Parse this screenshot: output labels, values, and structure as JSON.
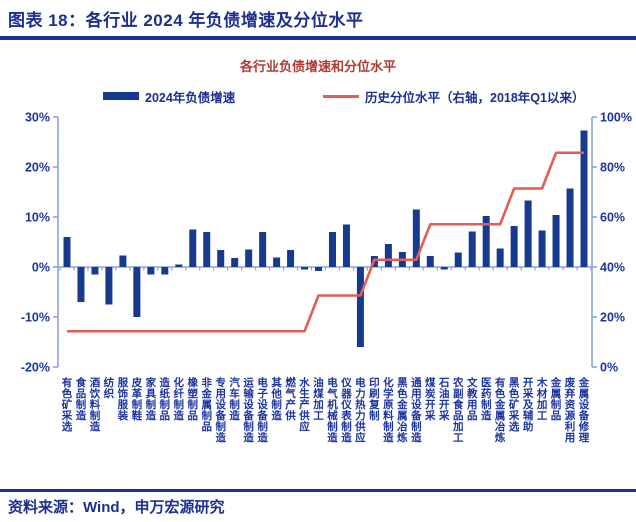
{
  "header": {
    "title": "图表 18：各行业 2024 年负债增速及分位水平"
  },
  "footer": {
    "source": "资料来源：Wind，申万宏源研究"
  },
  "colors": {
    "navy": "#1c2f92",
    "bar": "#17398f",
    "line": "#e25d55",
    "subtitle": "#b03a33",
    "axis_line": "#8aa5dc",
    "tick_label": "#1c34a0"
  },
  "chart_data": {
    "type": "bar",
    "title": "各行业负债增速和分位水平",
    "legend_position": "top",
    "grid": false,
    "categories": [
      "有色矿采选",
      "食品制造",
      "酒饮料制造",
      "纺织",
      "服饰服装",
      "皮革制鞋",
      "家具制造",
      "造纸制品",
      "化纤制造",
      "橡塑制品",
      "非金属制品",
      "专用设备制造",
      "汽车制造",
      "运输设备制造",
      "电子设备制造",
      "其他制造",
      "燃气产供",
      "水生产供应",
      "油煤加工",
      "电气机械制造",
      "仪器仪表制造",
      "电力热力供应",
      "印刷复制",
      "化学原料制造",
      "黑色金属冶炼",
      "通用设备制造",
      "煤炭开采",
      "石油开采",
      "农副食品加工",
      "文教用品",
      "医药制造",
      "有色金属冶炼",
      "黑色矿采选",
      "开采及辅助",
      "木材加工",
      "金属制品",
      "废弃资源利用",
      "金属设备修理"
    ],
    "series": [
      {
        "name": "2024年负债增速",
        "type": "bar",
        "axis": "left",
        "unit": "%",
        "values": [
          6,
          -7,
          -1.5,
          -7.5,
          2.3,
          -10,
          -1.5,
          -1.5,
          0.5,
          7.5,
          7,
          3.4,
          1.8,
          3.5,
          7,
          1.9,
          3.4,
          -0.5,
          -0.8,
          7,
          8.5,
          -16,
          2.2,
          4.6,
          3,
          11.5,
          2.2,
          -0.5,
          2.9,
          7.1,
          10.2,
          3.7,
          8.2,
          13.3,
          7.3,
          10.4,
          15.7,
          27.3
        ]
      },
      {
        "name": "历史分位水平（右轴，2018年Q1以来）",
        "type": "line",
        "axis": "right",
        "unit": "%",
        "values": [
          14.3,
          14.3,
          14.3,
          14.3,
          14.3,
          14.3,
          14.3,
          14.3,
          14.3,
          14.3,
          14.3,
          14.3,
          14.3,
          14.3,
          14.3,
          14.3,
          14.3,
          14.3,
          28.6,
          28.6,
          28.6,
          28.6,
          42.9,
          42.9,
          42.9,
          42.9,
          57.1,
          57.1,
          57.1,
          57.1,
          57.1,
          57.1,
          71.4,
          71.4,
          71.4,
          85.7,
          85.7,
          85.7
        ]
      }
    ],
    "left_axis": {
      "min": -20,
      "max": 30,
      "ticks": [
        "30%",
        "20%",
        "10%",
        "0%",
        "-10%",
        "-20%"
      ]
    },
    "right_axis": {
      "min": 0,
      "max": 100,
      "ticks": [
        "100%",
        "80%",
        "60%",
        "40%",
        "20%",
        "0%"
      ]
    }
  }
}
